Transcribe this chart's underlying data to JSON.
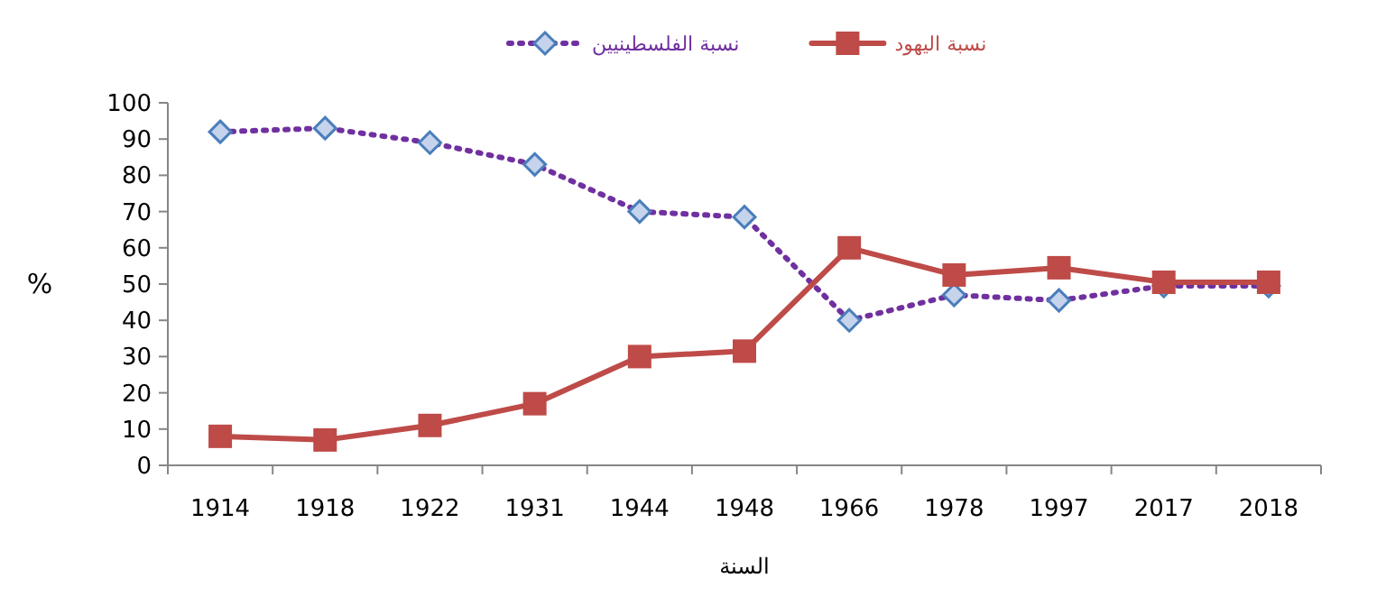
{
  "chart_data": {
    "type": "line",
    "xlabel": "السنة",
    "ylabel": "%",
    "categories": [
      "1914",
      "1918",
      "1922",
      "1931",
      "1944",
      "1948",
      "1966",
      "1978",
      "1997",
      "2017",
      "2018"
    ],
    "series": [
      {
        "name": "نسبة الفلسطينيين",
        "color": "#7030a0",
        "marker": "diamond",
        "line_style": "dotted",
        "values": [
          92,
          93,
          89,
          83,
          70,
          68.5,
          40,
          47,
          45.5,
          49.5,
          49.5
        ]
      },
      {
        "name": "نسبة اليهود",
        "color": "#be4b48",
        "marker": "square",
        "line_style": "solid",
        "values": [
          8,
          7,
          11,
          17,
          30,
          31.5,
          60,
          52.5,
          54.5,
          50.5,
          50.5
        ]
      }
    ],
    "ylim": [
      0,
      100
    ],
    "yticks": [
      0,
      10,
      20,
      30,
      40,
      50,
      60,
      70,
      80,
      90,
      100
    ],
    "grid": false,
    "legend": "top"
  }
}
